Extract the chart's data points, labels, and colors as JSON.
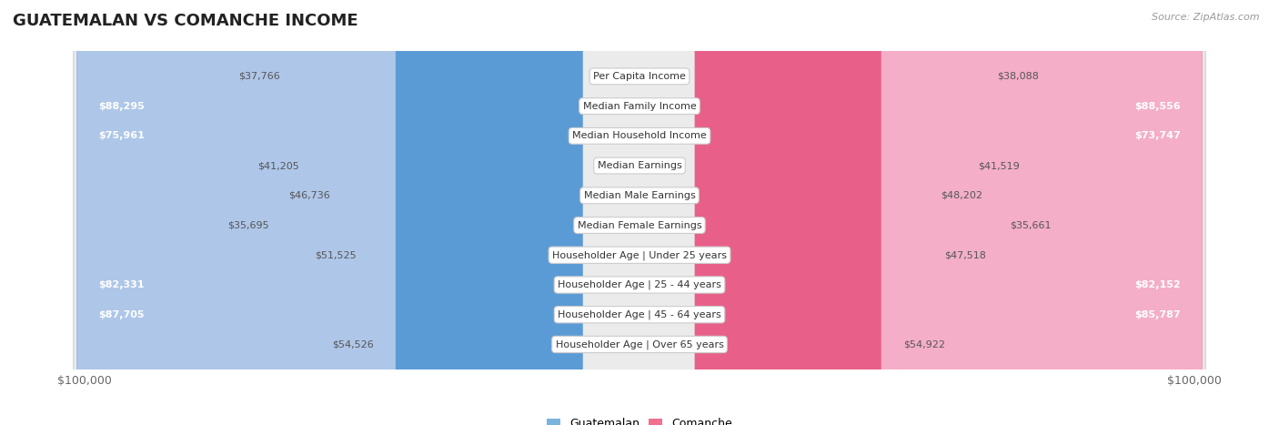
{
  "title": "GUATEMALAN VS COMANCHE INCOME",
  "source": "Source: ZipAtlas.com",
  "categories": [
    "Per Capita Income",
    "Median Family Income",
    "Median Household Income",
    "Median Earnings",
    "Median Male Earnings",
    "Median Female Earnings",
    "Householder Age | Under 25 years",
    "Householder Age | 25 - 44 years",
    "Householder Age | 45 - 64 years",
    "Householder Age | Over 65 years"
  ],
  "guatemalan_values": [
    37766,
    88295,
    75961,
    41205,
    46736,
    35695,
    51525,
    82331,
    87705,
    54526
  ],
  "comanche_values": [
    38088,
    88556,
    73747,
    41519,
    48202,
    35661,
    47518,
    82152,
    85787,
    54922
  ],
  "guatemalan_labels": [
    "$37,766",
    "$88,295",
    "$75,961",
    "$41,205",
    "$46,736",
    "$35,695",
    "$51,525",
    "$82,331",
    "$87,705",
    "$54,526"
  ],
  "comanche_labels": [
    "$38,088",
    "$88,556",
    "$73,747",
    "$41,519",
    "$48,202",
    "$35,661",
    "$47,518",
    "$82,152",
    "$85,787",
    "$54,922"
  ],
  "max_value": 100000,
  "guatemalan_color_light": "#aec6e8",
  "guatemalan_color_dark": "#5b9bd5",
  "comanche_color_light": "#f4aec8",
  "comanche_color_dark": "#e8608a",
  "label_threshold": 68000,
  "row_bg_color": "#ebebeb",
  "row_border_color": "#d8d8d8",
  "legend_guatemalan_color": "#7ab4dc",
  "legend_comanche_color": "#f07090",
  "title_fontsize": 13,
  "source_fontsize": 8,
  "bar_label_fontsize": 8,
  "cat_label_fontsize": 8
}
